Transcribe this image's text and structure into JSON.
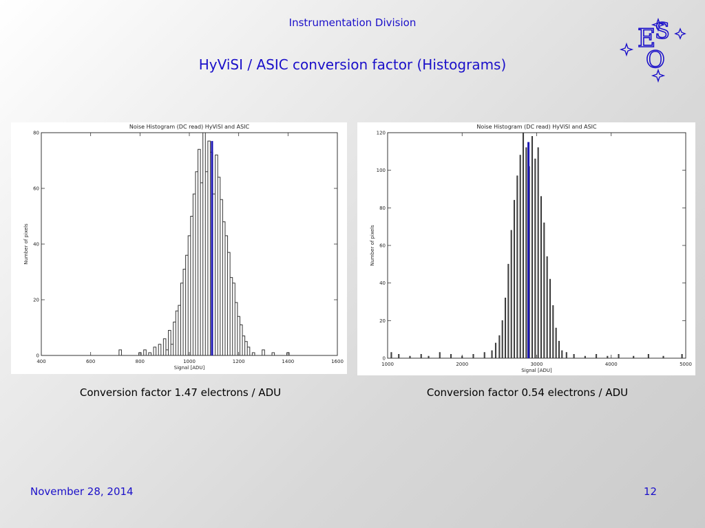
{
  "header": {
    "division": "Instrumentation Division",
    "title": "HyViSI / ASIC  conversion factor (Histograms)",
    "logo_text": [
      "E",
      "S",
      "O"
    ]
  },
  "footer": {
    "date": "November 28, 2014",
    "page_number": "12"
  },
  "captions": [
    "Conversion factor 1.47 electrons / ADU",
    "Conversion factor 0.54 electrons / ADU"
  ],
  "colors": {
    "accent": "#1a0fc9",
    "marker_line": "#1c16b4",
    "histogram_line": "#333333"
  },
  "chart_data": [
    {
      "type": "histogram",
      "title": "Noise Histogram (DC read) HyViSI and ASIC",
      "xlabel": "Signal [ADU]",
      "ylabel": "Number of pixels",
      "xlim": [
        400,
        1600
      ],
      "ylim": [
        0,
        80
      ],
      "xticks": [
        400,
        600,
        800,
        1000,
        1200,
        1400,
        1600
      ],
      "yticks": [
        0,
        20,
        40,
        60,
        80
      ],
      "marker_x": 1092,
      "marker_top": 77,
      "bins": {
        "x": [
          720,
          800,
          820,
          840,
          860,
          880,
          900,
          910,
          920,
          930,
          940,
          950,
          960,
          970,
          980,
          990,
          1000,
          1010,
          1020,
          1030,
          1040,
          1050,
          1060,
          1070,
          1080,
          1090,
          1100,
          1110,
          1120,
          1130,
          1140,
          1150,
          1160,
          1170,
          1180,
          1190,
          1200,
          1210,
          1220,
          1230,
          1240,
          1260,
          1300,
          1340,
          1400
        ],
        "counts": [
          2,
          1,
          2,
          1,
          3,
          4,
          6,
          2,
          9,
          4,
          12,
          16,
          18,
          26,
          31,
          36,
          43,
          50,
          58,
          66,
          74,
          62,
          80,
          66,
          77,
          73,
          58,
          72,
          64,
          56,
          48,
          43,
          37,
          28,
          26,
          19,
          14,
          11,
          7,
          5,
          3,
          1,
          2,
          1,
          1
        ]
      }
    },
    {
      "type": "histogram",
      "title": "Noise Histogram (DC read) HyViSI and ASIC",
      "xlabel": "Signal [ADU]",
      "ylabel": "Number of pixels",
      "xlim": [
        1000,
        5000
      ],
      "ylim": [
        0,
        120
      ],
      "xticks": [
        1000,
        2000,
        3000,
        4000,
        5000
      ],
      "yticks": [
        0,
        20,
        40,
        60,
        80,
        100,
        120
      ],
      "marker_x": 2890,
      "marker_top": 115,
      "bins": {
        "x": [
          1050,
          1150,
          1300,
          1450,
          1550,
          1700,
          1850,
          2000,
          2150,
          2300,
          2400,
          2450,
          2500,
          2540,
          2580,
          2620,
          2660,
          2700,
          2740,
          2780,
          2820,
          2860,
          2900,
          2940,
          2980,
          3020,
          3060,
          3100,
          3140,
          3180,
          3220,
          3260,
          3300,
          3340,
          3400,
          3500,
          3650,
          3800,
          3950,
          4100,
          4300,
          4500,
          4700,
          4950
        ],
        "counts": [
          3,
          2,
          1,
          2,
          1,
          3,
          2,
          1,
          2,
          3,
          4,
          8,
          12,
          20,
          32,
          50,
          68,
          84,
          97,
          108,
          120,
          112,
          102,
          118,
          106,
          112,
          86,
          72,
          54,
          42,
          28,
          16,
          9,
          4,
          3,
          2,
          1,
          2,
          1,
          2,
          1,
          2,
          1,
          2
        ]
      }
    }
  ]
}
